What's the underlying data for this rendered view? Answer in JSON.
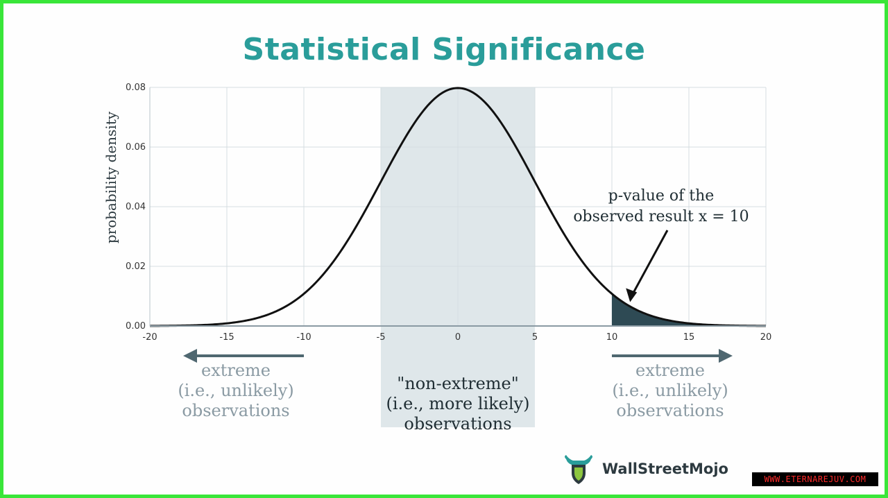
{
  "chart_data": {
    "type": "line",
    "title": "Statistical Significance",
    "ylabel": "probability density",
    "xlabel": "",
    "xlim": [
      -20,
      20
    ],
    "ylim": [
      0,
      0.08
    ],
    "x_ticks": [
      -20,
      -15,
      -10,
      -5,
      0,
      5,
      10,
      15,
      20
    ],
    "x_tick_labels": [
      "-20",
      "-15",
      "-10",
      "-5",
      "0",
      "5",
      "10",
      "15",
      "20"
    ],
    "y_ticks": [
      0,
      0.02,
      0.04,
      0.06,
      0.08
    ],
    "y_tick_labels": [
      "0.00",
      "0.02",
      "0.04",
      "0.06",
      "0.08"
    ],
    "grid": true,
    "distribution": {
      "kind": "normal",
      "mean": 0,
      "sd": 5
    },
    "shaded_band": {
      "from": -5,
      "to": 5,
      "color": "#dfe7ea"
    },
    "shaded_tail": {
      "from": 10,
      "to": 20,
      "color": "#2e4a54"
    },
    "curve_color": "#111111",
    "annotation": {
      "lines": [
        "p-value of the",
        "observed result x = 10"
      ],
      "points_to_x": 11
    },
    "regions": {
      "left": {
        "lines": [
          "extreme",
          "(i.e., unlikely)",
          "observations"
        ],
        "arrow": "left"
      },
      "center": {
        "lines": [
          "\"non-extreme\"",
          "(i.e., more likely)",
          "observations"
        ]
      },
      "right": {
        "lines": [
          "extreme",
          "(i.e., unlikely)",
          "observations"
        ],
        "arrow": "right"
      }
    }
  },
  "branding": {
    "logo_name": "WallStreetMojo",
    "logo_icon": "bull-shield-logo-icon",
    "watermark": "WWW.ETERNAREJUV.COM"
  },
  "colors": {
    "title": "#2a9d9a",
    "frame": "#39e639",
    "grid": "#d5dde1",
    "region_text_muted": "#8a9aa3",
    "region_text_dark": "#1f2d33",
    "arrow": "#4f6770"
  }
}
